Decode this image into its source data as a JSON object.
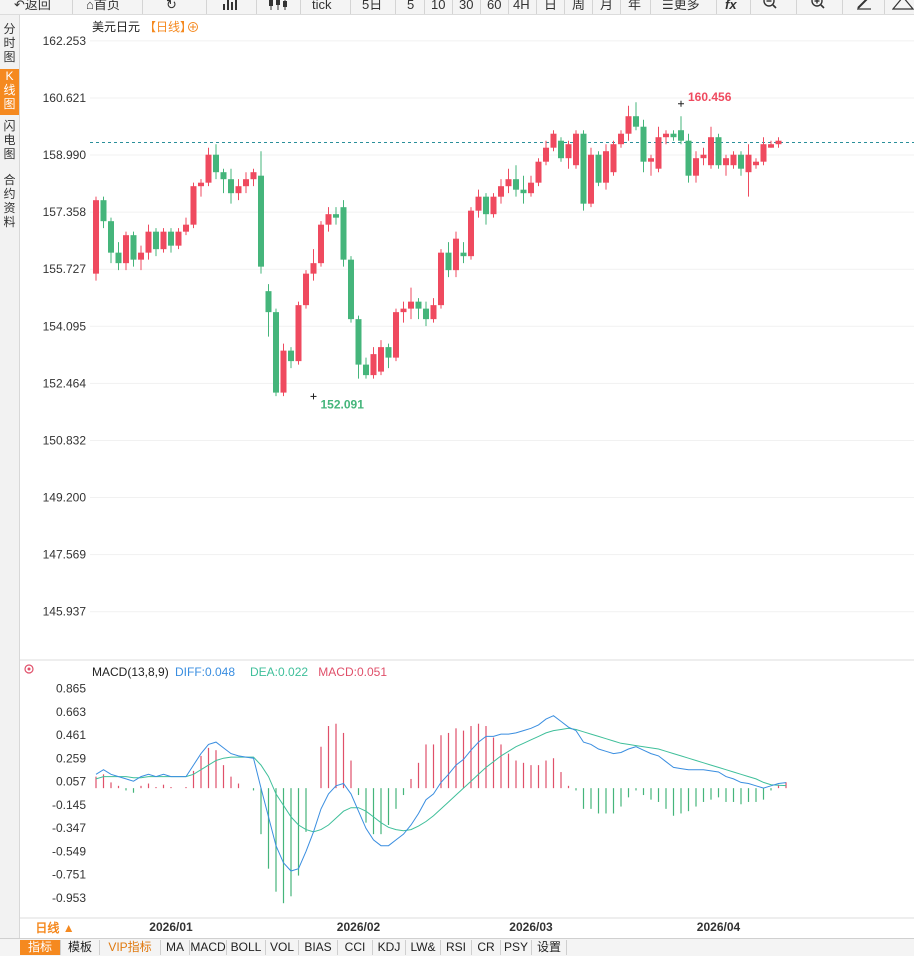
{
  "toolbar": {
    "back": "返回",
    "home": "首页",
    "tick": "tick",
    "periods": [
      "5日",
      "5",
      "10",
      "30",
      "60",
      "4H",
      "日",
      "周",
      "月",
      "年"
    ],
    "more": "更多"
  },
  "side_tabs": [
    {
      "label": "分时图",
      "active": false
    },
    {
      "label": "K线图",
      "active": true
    },
    {
      "label": "闪电图",
      "active": false
    },
    {
      "label": "合约资料",
      "active": false
    }
  ],
  "header": {
    "symbol": "美元日元",
    "period": "【日线】"
  },
  "period_tab": "日线 ▲",
  "bottom_tabs": [
    "指标",
    "模板",
    "VIP指标",
    "MA",
    "MACD",
    "BOLL",
    "VOL",
    "BIAS",
    "CCI",
    "KDJ",
    "LW&",
    "RSI",
    "CR",
    "PSY",
    "设置"
  ],
  "colors": {
    "up": "#ef4a5f",
    "down": "#45b57b",
    "diff": "#3a8ee0",
    "dea": "#3fbf9a",
    "accent": "#f5891f"
  },
  "chart_data": [
    {
      "type": "candlestick",
      "title": "美元日元",
      "ylim": [
        144.7,
        162.85
      ],
      "yticks": [
        "162.253",
        "160.621",
        "158.990",
        "157.358",
        "155.727",
        "154.095",
        "152.464",
        "150.832",
        "149.200",
        "147.569",
        "145.937"
      ],
      "xticks": [
        {
          "index": 10,
          "label": "2026/01"
        },
        {
          "index": 35,
          "label": "2026/02"
        },
        {
          "index": 58,
          "label": "2026/03"
        },
        {
          "index": 83,
          "label": "2026/04"
        }
      ],
      "annotations": [
        {
          "index": 78,
          "label": "160.456",
          "value": 160.456
        },
        {
          "index": 29,
          "label": "152.091",
          "value": 152.091
        }
      ],
      "reference_line": 159.35,
      "ohlc": [
        [
          155.6,
          157.8,
          155.4,
          157.7
        ],
        [
          157.7,
          157.8,
          156.9,
          157.1
        ],
        [
          157.1,
          157.2,
          155.9,
          156.2
        ],
        [
          156.2,
          156.5,
          155.7,
          155.9
        ],
        [
          155.9,
          156.8,
          155.7,
          156.7
        ],
        [
          156.7,
          156.8,
          155.8,
          156.0
        ],
        [
          156.0,
          156.4,
          155.7,
          156.2
        ],
        [
          156.2,
          157.0,
          156.0,
          156.8
        ],
        [
          156.8,
          156.9,
          156.1,
          156.3
        ],
        [
          156.3,
          156.9,
          156.2,
          156.8
        ],
        [
          156.8,
          156.9,
          156.2,
          156.4
        ],
        [
          156.4,
          156.9,
          156.3,
          156.8
        ],
        [
          156.8,
          157.2,
          156.7,
          157.0
        ],
        [
          157.0,
          158.2,
          156.9,
          158.1
        ],
        [
          158.1,
          158.3,
          157.8,
          158.2
        ],
        [
          158.2,
          159.2,
          158.1,
          159.0
        ],
        [
          159.0,
          159.3,
          158.3,
          158.5
        ],
        [
          158.5,
          158.6,
          157.9,
          158.3
        ],
        [
          158.3,
          158.6,
          157.6,
          157.9
        ],
        [
          157.9,
          158.3,
          157.7,
          158.1
        ],
        [
          158.1,
          158.5,
          157.9,
          158.3
        ],
        [
          158.3,
          158.6,
          158.1,
          158.5
        ],
        [
          158.4,
          159.1,
          155.6,
          155.8
        ],
        [
          155.1,
          155.3,
          153.8,
          154.5
        ],
        [
          154.5,
          154.6,
          152.1,
          152.2
        ],
        [
          152.2,
          153.6,
          152.1,
          153.4
        ],
        [
          153.4,
          153.5,
          152.9,
          153.1
        ],
        [
          153.1,
          154.8,
          153.0,
          154.7
        ],
        [
          154.7,
          155.7,
          154.6,
          155.6
        ],
        [
          155.6,
          156.3,
          155.4,
          155.9
        ],
        [
          155.9,
          157.1,
          155.8,
          157.0
        ],
        [
          157.0,
          157.5,
          156.8,
          157.3
        ],
        [
          157.3,
          157.5,
          157.0,
          157.2
        ],
        [
          157.5,
          157.7,
          155.8,
          156.0
        ],
        [
          156.0,
          156.1,
          154.2,
          154.3
        ],
        [
          154.3,
          154.4,
          152.6,
          153.0
        ],
        [
          153.0,
          153.2,
          152.6,
          152.7
        ],
        [
          152.7,
          153.5,
          152.6,
          153.3
        ],
        [
          152.8,
          153.7,
          152.7,
          153.5
        ],
        [
          153.5,
          153.6,
          152.9,
          153.2
        ],
        [
          153.2,
          154.6,
          153.1,
          154.5
        ],
        [
          154.5,
          154.8,
          154.2,
          154.6
        ],
        [
          154.6,
          155.2,
          154.3,
          154.8
        ],
        [
          154.8,
          154.9,
          154.3,
          154.6
        ],
        [
          154.6,
          154.8,
          154.1,
          154.3
        ],
        [
          154.3,
          154.9,
          154.2,
          154.7
        ],
        [
          154.7,
          156.3,
          154.6,
          156.2
        ],
        [
          156.2,
          156.5,
          155.5,
          155.7
        ],
        [
          155.7,
          156.8,
          155.5,
          156.6
        ],
        [
          156.2,
          156.5,
          155.9,
          156.1
        ],
        [
          156.1,
          157.5,
          156.0,
          157.4
        ],
        [
          157.4,
          158.0,
          157.2,
          157.8
        ],
        [
          157.8,
          157.9,
          157.0,
          157.3
        ],
        [
          157.3,
          157.9,
          157.2,
          157.8
        ],
        [
          157.8,
          158.3,
          157.6,
          158.1
        ],
        [
          158.1,
          158.6,
          157.9,
          158.3
        ],
        [
          158.3,
          158.7,
          157.8,
          158.0
        ],
        [
          158.0,
          158.4,
          157.6,
          157.9
        ],
        [
          157.9,
          158.4,
          157.8,
          158.2
        ],
        [
          158.2,
          158.9,
          158.1,
          158.8
        ],
        [
          158.8,
          159.4,
          158.7,
          159.2
        ],
        [
          159.2,
          159.7,
          159.1,
          159.6
        ],
        [
          159.4,
          159.5,
          158.8,
          158.9
        ],
        [
          158.9,
          159.4,
          158.6,
          159.3
        ],
        [
          158.7,
          159.7,
          158.6,
          159.6
        ],
        [
          159.6,
          159.7,
          157.4,
          157.6
        ],
        [
          157.6,
          159.2,
          157.5,
          159.0
        ],
        [
          159.0,
          159.1,
          158.1,
          158.2
        ],
        [
          158.2,
          159.3,
          158.0,
          159.1
        ],
        [
          158.5,
          159.4,
          158.4,
          159.3
        ],
        [
          159.3,
          159.7,
          159.2,
          159.6
        ],
        [
          159.6,
          160.4,
          159.4,
          160.1
        ],
        [
          160.1,
          160.5,
          159.7,
          159.8
        ],
        [
          159.8,
          160.0,
          158.5,
          158.8
        ],
        [
          158.8,
          159.0,
          158.4,
          158.9
        ],
        [
          158.6,
          159.8,
          158.5,
          159.5
        ],
        [
          159.5,
          159.7,
          159.3,
          159.6
        ],
        [
          159.6,
          159.7,
          159.4,
          159.5
        ],
        [
          159.7,
          160.1,
          159.3,
          159.4
        ],
        [
          159.4,
          159.6,
          158.2,
          158.4
        ],
        [
          158.4,
          159.1,
          158.2,
          158.9
        ],
        [
          158.9,
          159.2,
          158.7,
          159.0
        ],
        [
          158.7,
          159.8,
          158.6,
          159.5
        ],
        [
          159.5,
          159.6,
          158.6,
          158.7
        ],
        [
          158.7,
          159.0,
          158.4,
          158.9
        ],
        [
          158.7,
          159.1,
          158.6,
          159.0
        ],
        [
          159.0,
          159.1,
          158.4,
          158.6
        ],
        [
          158.5,
          159.3,
          157.8,
          159.0
        ],
        [
          158.7,
          158.9,
          158.6,
          158.8
        ],
        [
          158.8,
          159.5,
          158.7,
          159.3
        ],
        [
          159.2,
          159.4,
          159.2,
          159.3
        ],
        [
          159.3,
          159.5,
          159.2,
          159.4
        ]
      ]
    },
    {
      "type": "macd",
      "title": "MACD(13,8,9)",
      "legend": [
        {
          "label": "DIFF:0.048",
          "color": "#3a8ee0"
        },
        {
          "label": "DEA:0.022",
          "color": "#3fbf9a"
        },
        {
          "label": "MACD:0.051",
          "color": "#e0506a"
        }
      ],
      "ylim": [
        -1.12,
        0.94
      ],
      "yticks": [
        0.865,
        0.663,
        0.461,
        0.259,
        0.057,
        -0.145,
        -0.347,
        -0.549,
        -0.751,
        -0.953
      ],
      "diff": [
        0.12,
        0.16,
        0.12,
        0.1,
        0.08,
        0.06,
        0.1,
        0.12,
        0.1,
        0.12,
        0.1,
        0.1,
        0.1,
        0.2,
        0.3,
        0.38,
        0.4,
        0.35,
        0.3,
        0.28,
        0.27,
        0.26,
        0.0,
        -0.25,
        -0.5,
        -0.65,
        -0.72,
        -0.7,
        -0.55,
        -0.38,
        -0.18,
        -0.05,
        0.02,
        0.04,
        -0.05,
        -0.2,
        -0.35,
        -0.45,
        -0.5,
        -0.5,
        -0.45,
        -0.4,
        -0.32,
        -0.22,
        -0.1,
        -0.05,
        0.05,
        0.12,
        0.2,
        0.25,
        0.33,
        0.4,
        0.45,
        0.45,
        0.47,
        0.47,
        0.48,
        0.5,
        0.52,
        0.55,
        0.6,
        0.63,
        0.58,
        0.53,
        0.5,
        0.4,
        0.38,
        0.34,
        0.32,
        0.3,
        0.31,
        0.34,
        0.36,
        0.33,
        0.3,
        0.28,
        0.23,
        0.18,
        0.17,
        0.16,
        0.16,
        0.16,
        0.15,
        0.14,
        0.1,
        0.08,
        0.05,
        0.04,
        0.02,
        0.0,
        0.02,
        0.04,
        0.048
      ],
      "dea": [
        0.08,
        0.1,
        0.1,
        0.1,
        0.1,
        0.09,
        0.09,
        0.1,
        0.1,
        0.1,
        0.1,
        0.1,
        0.1,
        0.12,
        0.16,
        0.2,
        0.24,
        0.26,
        0.27,
        0.27,
        0.27,
        0.27,
        0.2,
        0.1,
        -0.05,
        -0.15,
        -0.25,
        -0.32,
        -0.36,
        -0.38,
        -0.36,
        -0.32,
        -0.26,
        -0.2,
        -0.17,
        -0.17,
        -0.2,
        -0.25,
        -0.3,
        -0.34,
        -0.36,
        -0.37,
        -0.36,
        -0.33,
        -0.29,
        -0.24,
        -0.18,
        -0.12,
        -0.06,
        0.0,
        0.06,
        0.12,
        0.18,
        0.23,
        0.28,
        0.32,
        0.36,
        0.39,
        0.42,
        0.45,
        0.48,
        0.5,
        0.51,
        0.52,
        0.51,
        0.49,
        0.47,
        0.45,
        0.43,
        0.41,
        0.39,
        0.38,
        0.37,
        0.36,
        0.35,
        0.34,
        0.32,
        0.3,
        0.28,
        0.26,
        0.24,
        0.22,
        0.2,
        0.18,
        0.16,
        0.14,
        0.12,
        0.1,
        0.08,
        0.05,
        0.03,
        0.025,
        0.022
      ],
      "histogram": [
        0.1,
        0.12,
        0.05,
        0.02,
        -0.02,
        -0.04,
        0.02,
        0.04,
        0.01,
        0.03,
        0.01,
        0.0,
        0.01,
        0.15,
        0.28,
        0.35,
        0.33,
        0.2,
        0.1,
        0.04,
        0.0,
        -0.02,
        -0.4,
        -0.7,
        -0.9,
        -1.0,
        -0.94,
        -0.76,
        -0.38,
        0.0,
        0.36,
        0.54,
        0.56,
        0.48,
        0.24,
        -0.06,
        -0.3,
        -0.4,
        -0.4,
        -0.32,
        -0.18,
        -0.06,
        0.08,
        0.22,
        0.38,
        0.38,
        0.46,
        0.48,
        0.52,
        0.5,
        0.54,
        0.56,
        0.54,
        0.44,
        0.38,
        0.3,
        0.24,
        0.22,
        0.2,
        0.2,
        0.24,
        0.26,
        0.14,
        0.02,
        -0.02,
        -0.18,
        -0.18,
        -0.22,
        -0.22,
        -0.22,
        -0.16,
        -0.08,
        -0.02,
        -0.06,
        -0.1,
        -0.12,
        -0.18,
        -0.24,
        -0.22,
        -0.2,
        -0.16,
        -0.12,
        -0.1,
        -0.08,
        -0.12,
        -0.12,
        -0.14,
        -0.12,
        -0.12,
        -0.1,
        -0.02,
        0.03,
        0.051
      ]
    }
  ]
}
